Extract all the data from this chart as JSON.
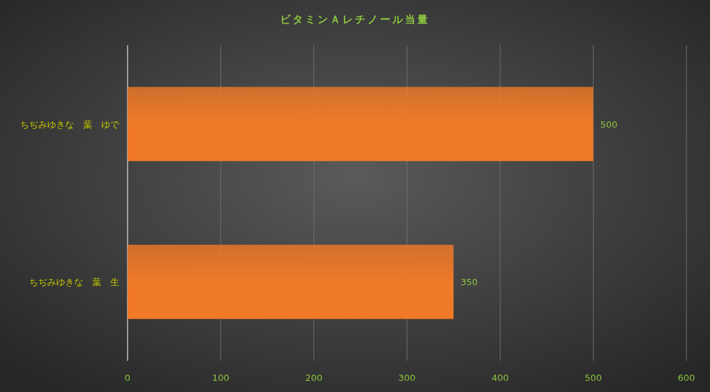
{
  "chart_data": {
    "type": "bar",
    "orientation": "horizontal",
    "title": "ビタミンＡレチノール当量",
    "categories": [
      "ちぢみゆきな　葉　ゆで",
      "ちぢみゆきな　葉　生"
    ],
    "values": [
      500,
      350
    ],
    "color": "#f07a28",
    "xlim": [
      0,
      600
    ],
    "xticks": [
      0,
      100,
      200,
      300,
      400,
      500,
      600
    ],
    "grid": "x",
    "data_labels": true
  }
}
